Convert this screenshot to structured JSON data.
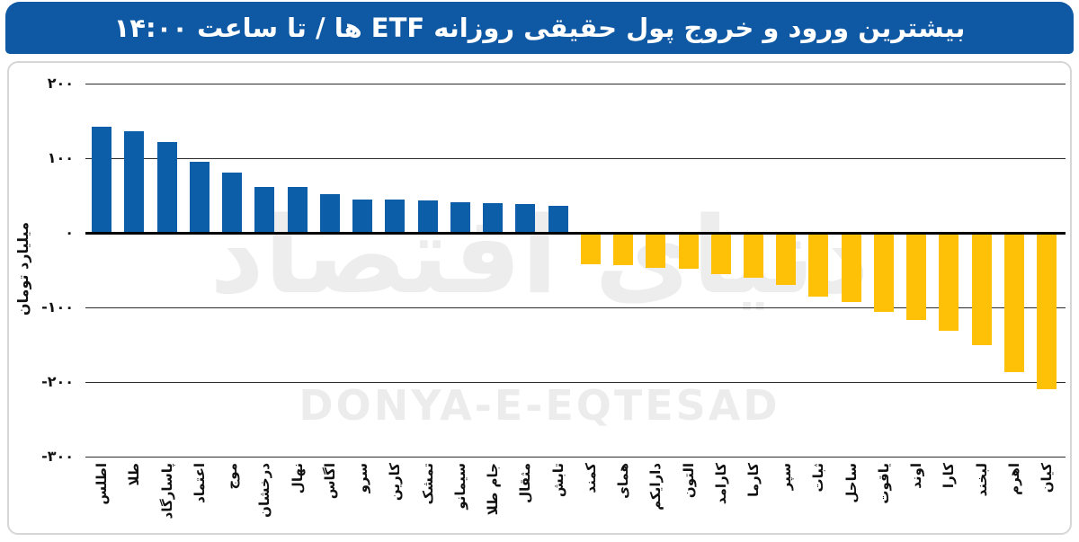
{
  "header": {
    "title": "بیشترین ورود و خروج پول حقیقی روزانه ETF ها / تا ساعت ۱۴:۰۰"
  },
  "watermark": {
    "fa": "دنیای اقتصاد",
    "en": "DONYA-E-EQTESAD"
  },
  "colors": {
    "header_bg": "#0f59a4",
    "positive_bar": "#0d5ea8",
    "negative_bar": "#ffc107",
    "gridline": "#2b2b2b",
    "zero_line": "#000000"
  },
  "chart_data": {
    "type": "bar",
    "title": "بیشترین ورود و خروج پول حقیقی روزانه ETF ها / تا ساعت ۱۴:۰۰",
    "xlabel": "",
    "ylabel": "میلیارد تومان",
    "ylim": [
      -300,
      200
    ],
    "grid": "horizontal",
    "legend": "none",
    "yticks": [
      {
        "v": 200,
        "label": "۲۰۰"
      },
      {
        "v": 100,
        "label": "۱۰۰"
      },
      {
        "v": 0,
        "label": "۰"
      },
      {
        "v": -100,
        "label": "-۱۰۰"
      },
      {
        "v": -200,
        "label": "-۲۰۰"
      },
      {
        "v": -300,
        "label": "-۳۰۰"
      }
    ],
    "categories": [
      "اطلس",
      "طلا",
      "پاسارگاد",
      "اعتماد",
      "موج",
      "درخشان",
      "نهال",
      "اگاس",
      "سرو",
      "کارین",
      "تمشک",
      "سیمانو",
      "جام طلا",
      "مثقال",
      "تابش",
      "کمند",
      "همای",
      "دارایکم",
      "التون",
      "کارامد",
      "کارما",
      "سپر",
      "ثبات",
      "ساحل",
      "یاقوت",
      "اوند",
      "کارا",
      "لبخند",
      "اهرم",
      "کیان"
    ],
    "values": [
      142,
      136,
      121,
      95,
      81,
      61,
      61,
      52,
      45,
      44,
      43,
      41,
      40,
      39,
      36,
      -41,
      -42,
      -46,
      -47,
      -54,
      -59,
      -68,
      -84,
      -92,
      -105,
      -115,
      -130,
      -149,
      -185,
      -208
    ]
  }
}
